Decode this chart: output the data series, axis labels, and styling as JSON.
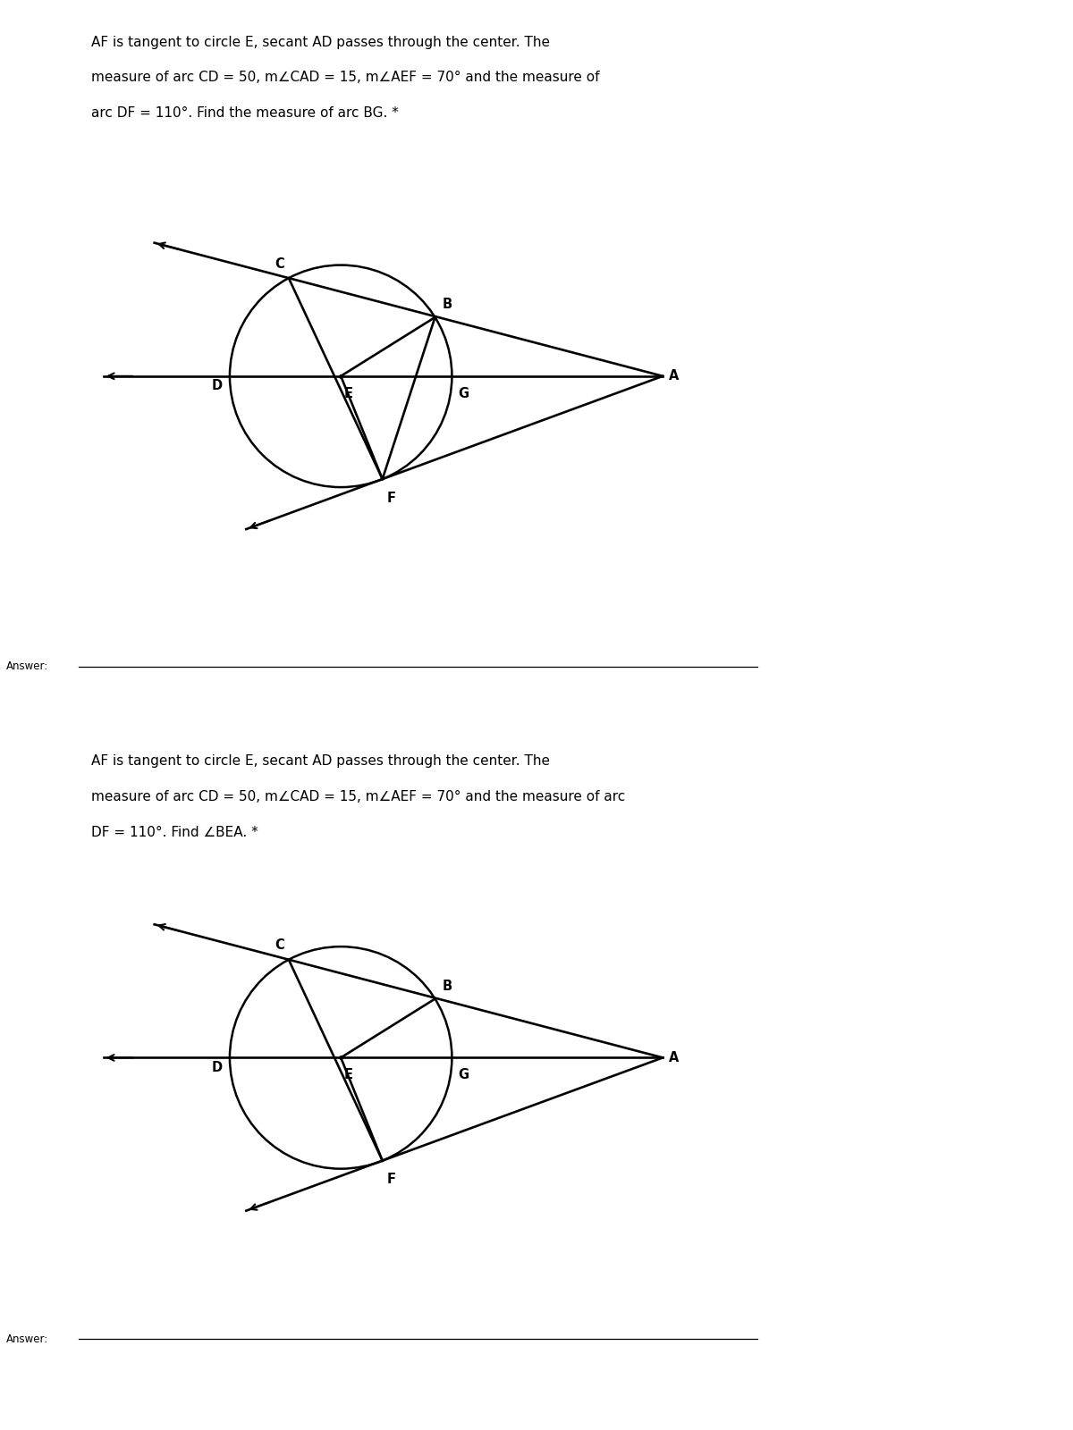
{
  "bg_color": "#ffffff",
  "text_color": "#000000",
  "problem1_text_lines": [
    "AF is tangent to circle E, secant AD passes through the center. The",
    "measure of arc CD = 50, m∠CAD = 15, m∠AEF = 70° and the measure of",
    "arc DF = 110°. Find the measure of arc BG. *"
  ],
  "problem2_text_lines": [
    "AF is tangent to circle E, secant AD passes through the center. The",
    "measure of arc CD = 50, m∠CAD = 15, m∠AEF = 70° and the measure of arc",
    "DF = 110°. Find ∠BEA. *"
  ],
  "answer_label": "Answer:",
  "text_fontsize": 11.0,
  "label_fontsize": 10.5,
  "answer_fontsize": 8.5
}
